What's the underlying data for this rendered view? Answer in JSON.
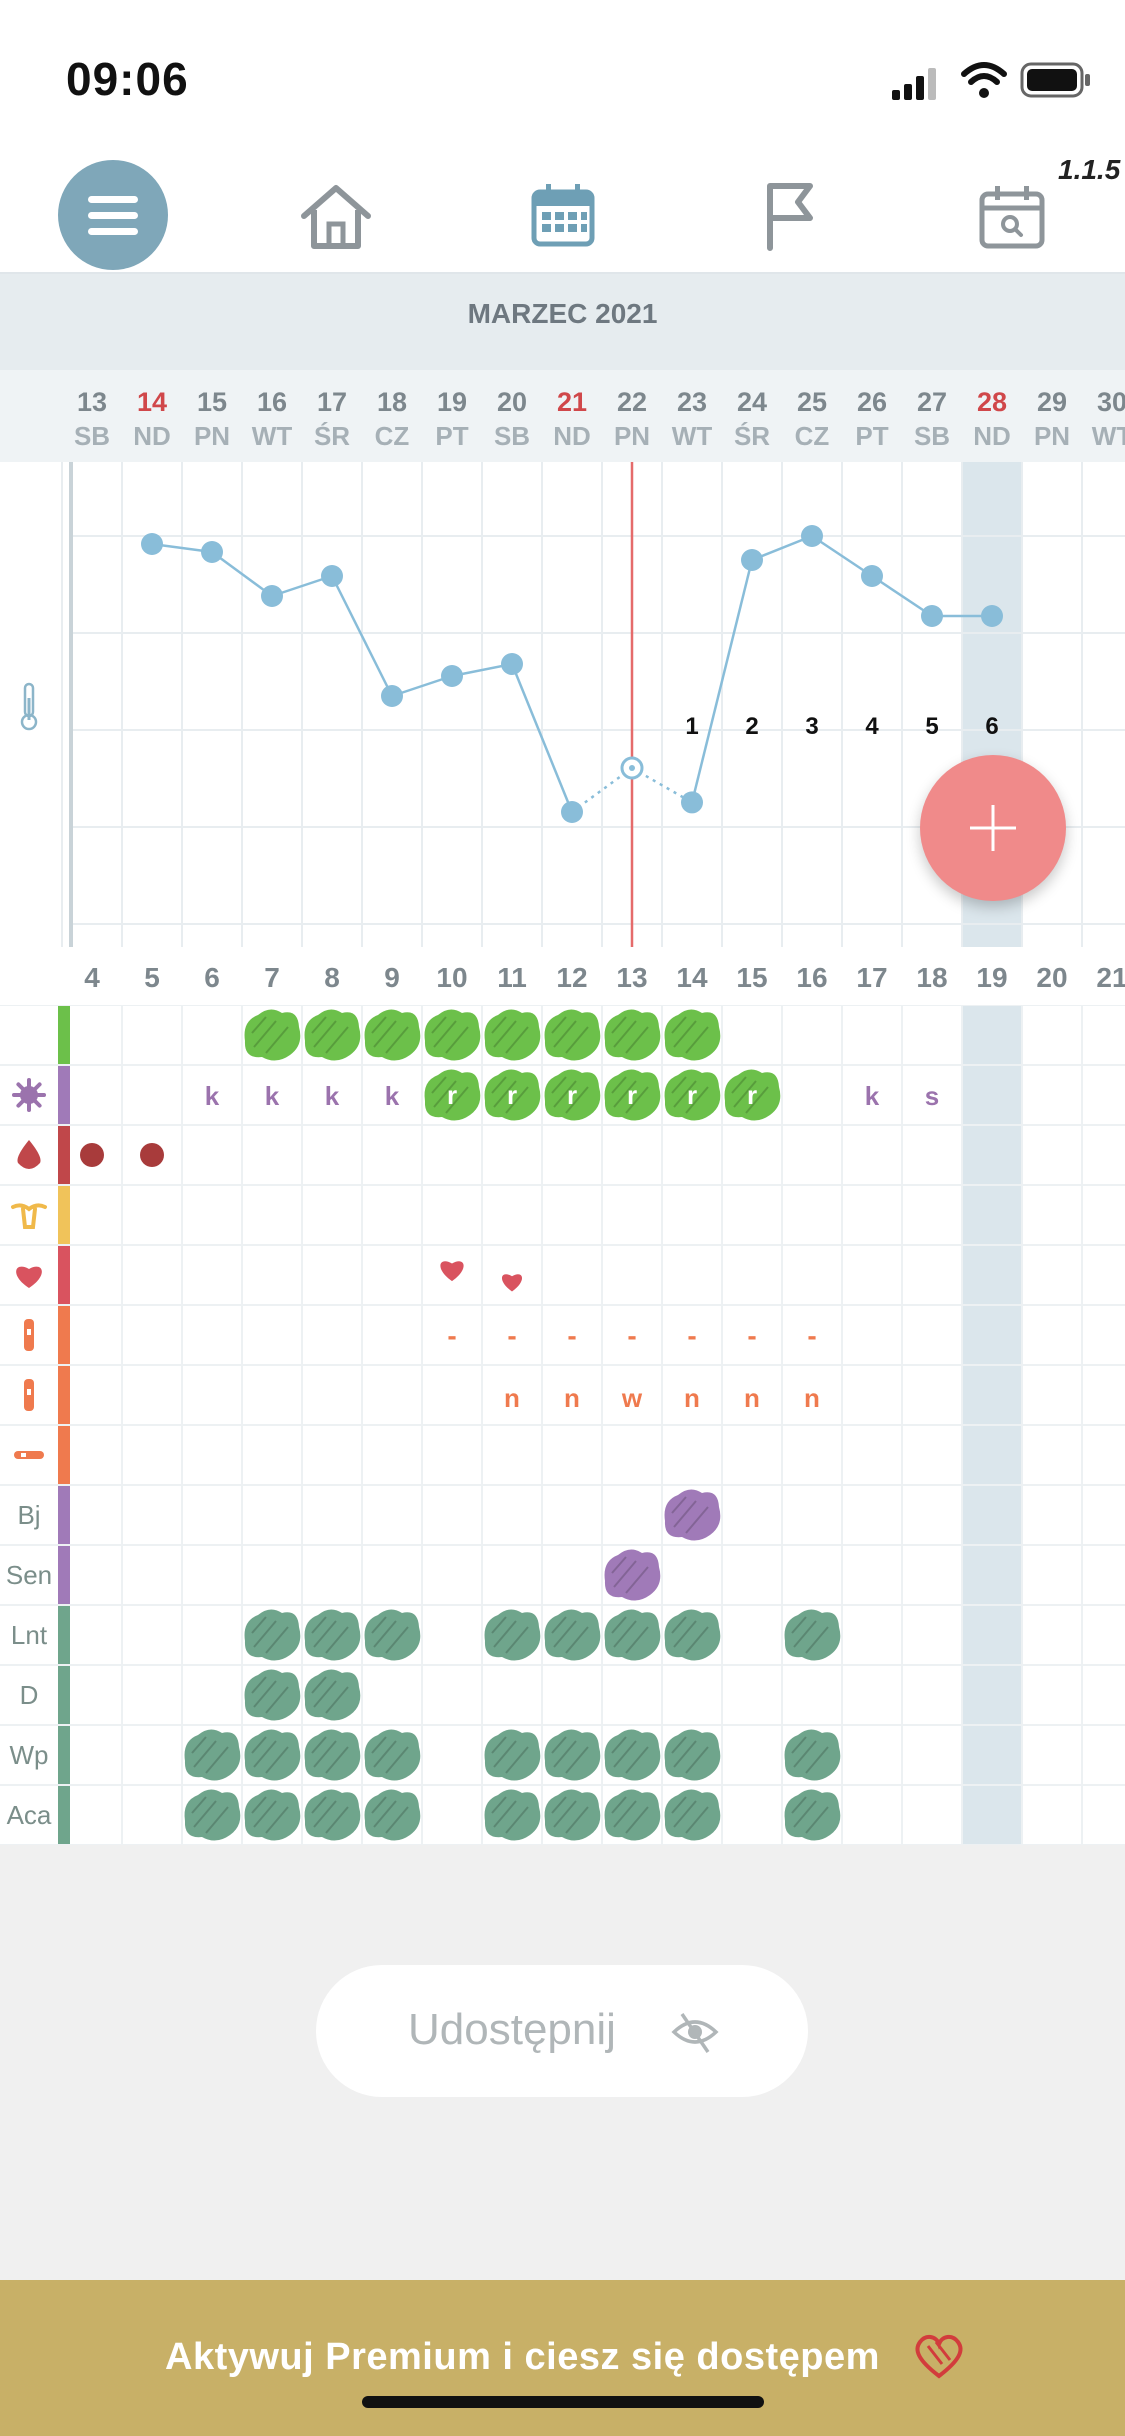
{
  "status": {
    "time": "09:06"
  },
  "app": {
    "version": "1.1.5"
  },
  "nav": {
    "items": [
      {
        "name": "menu-icon",
        "active": false
      },
      {
        "name": "home-icon",
        "active": false
      },
      {
        "name": "calendar-icon",
        "active": true
      },
      {
        "name": "flag-icon",
        "active": false
      },
      {
        "name": "calendar-search-icon",
        "active": false
      }
    ]
  },
  "calendar": {
    "month": "MARZEC 2021",
    "days": [
      {
        "n": "13",
        "w": "SB",
        "sun": false
      },
      {
        "n": "14",
        "w": "ND",
        "sun": true
      },
      {
        "n": "15",
        "w": "PN",
        "sun": false
      },
      {
        "n": "16",
        "w": "WT",
        "sun": false
      },
      {
        "n": "17",
        "w": "ŚR",
        "sun": false
      },
      {
        "n": "18",
        "w": "CZ",
        "sun": false
      },
      {
        "n": "19",
        "w": "PT",
        "sun": false
      },
      {
        "n": "20",
        "w": "SB",
        "sun": false
      },
      {
        "n": "21",
        "w": "ND",
        "sun": true
      },
      {
        "n": "22",
        "w": "PN",
        "sun": false
      },
      {
        "n": "23",
        "w": "WT",
        "sun": false
      },
      {
        "n": "24",
        "w": "ŚR",
        "sun": false
      },
      {
        "n": "25",
        "w": "CZ",
        "sun": false
      },
      {
        "n": "26",
        "w": "PT",
        "sun": false
      },
      {
        "n": "27",
        "w": "SB",
        "sun": false
      },
      {
        "n": "28",
        "w": "ND",
        "sun": true
      },
      {
        "n": "29",
        "w": "PN",
        "sun": false
      },
      {
        "n": "30",
        "w": "WT",
        "sun": false
      }
    ],
    "cycle_days": [
      "4",
      "5",
      "6",
      "7",
      "8",
      "9",
      "10",
      "11",
      "12",
      "13",
      "14",
      "15",
      "16",
      "17",
      "18",
      "19",
      "20",
      "21"
    ],
    "post_ovulation_labels": [
      "1",
      "2",
      "3",
      "4",
      "5",
      "6"
    ]
  },
  "temperature": {
    "values": [
      4.35,
      4.25,
      3.7,
      3.95,
      2.45,
      2.7,
      2.85,
      1.0,
      1.55,
      1.12,
      4.15,
      4.45,
      3.95,
      3.45,
      3.45
    ],
    "first_day_index": 1,
    "interpolated_segments": [
      [
        8,
        9
      ],
      [
        9,
        10
      ]
    ],
    "ovulation_day_index": 9,
    "today_day_index": 15,
    "y_range": [
      0,
      5
    ]
  },
  "rows": {
    "labels": [
      "",
      "",
      "",
      "",
      "",
      "",
      "",
      "",
      "Bj",
      "Sen",
      "Lnt",
      "D",
      "Wp",
      "Aca"
    ],
    "row_icons": [
      "",
      "virus-icon",
      "blood-drop-icon",
      "uterus-icon",
      "heart-icon",
      "test-strip-icon",
      "test-strip-icon",
      "thermometer-stick-icon",
      "",
      "",
      "",
      "",
      "",
      ""
    ],
    "row_colors": [
      "#6cc04a",
      "#a07ab8",
      "#c0474a",
      "#f0c35a",
      "#d9535f",
      "#ef7a4e",
      "#ef7a4e",
      "#ef7a4e",
      "#a07ab8",
      "#a07ab8",
      "#6fa58c",
      "#6fa58c",
      "#6fa58c",
      "#6fa58c"
    ],
    "mucus_markers": [
      {
        "day": 2,
        "text": "k"
      },
      {
        "day": 3,
        "text": "k"
      },
      {
        "day": 4,
        "text": "k"
      },
      {
        "day": 5,
        "text": "k"
      },
      {
        "day": 13,
        "text": "k"
      },
      {
        "day": 14,
        "text": "s"
      }
    ],
    "mucus_blob_letter": "r",
    "lh_markers": [
      "-",
      "-",
      "-",
      "-",
      "-",
      "-",
      "-"
    ],
    "preg_markers": [
      {
        "day": 7,
        "text": "n"
      },
      {
        "day": 8,
        "text": "n"
      },
      {
        "day": 9,
        "text": "w"
      },
      {
        "day": 10,
        "text": "n"
      },
      {
        "day": 11,
        "text": "n"
      },
      {
        "day": 12,
        "text": "n"
      }
    ]
  },
  "actions": {
    "share_label": "Udostępnij"
  },
  "premium": {
    "text": "Aktywuj Premium i ciesz się dostępem"
  },
  "colors": {
    "accent": "#7fa7b9",
    "line": "#89bdd9",
    "fab": "#f08a8a",
    "premium": "#c8b067",
    "green_blob": "#6cc04a",
    "teal_blob": "#6fa58c",
    "purple_blob": "#a07ab8",
    "sunday": "#d0474a"
  }
}
